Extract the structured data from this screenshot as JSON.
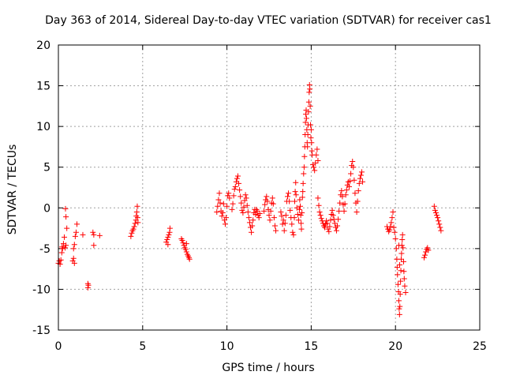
{
  "chart_data": {
    "type": "scatter",
    "title": "Day 363 of 2014, Sidereal Day-to-day VTEC variation (SDTVAR) for receiver cas1",
    "xlabel": "GPS time / hours",
    "ylabel": "SDTVAR / TECUs",
    "xlim": [
      0,
      25
    ],
    "ylim": [
      -15,
      20
    ],
    "xticks": [
      "0",
      "5",
      "10",
      "15",
      "20",
      "25"
    ],
    "yticks": [
      "-15",
      "-10",
      "-5",
      "0",
      "5",
      "10",
      "15",
      "20"
    ],
    "grid": true,
    "marker": "+",
    "colors": {
      "series": "#ff0000",
      "grid": "#a0a0a0",
      "axis": "#000000"
    },
    "series": [
      {
        "name": "cas1",
        "points": [
          [
            0.0,
            -6.8
          ],
          [
            0.05,
            -6.5
          ],
          [
            0.1,
            -6.9
          ],
          [
            0.15,
            -6.4
          ],
          [
            0.2,
            -5.5
          ],
          [
            0.22,
            -4.8
          ],
          [
            0.25,
            -5.0
          ],
          [
            0.3,
            -4.4
          ],
          [
            0.35,
            -3.6
          ],
          [
            0.4,
            -4.9
          ],
          [
            0.45,
            -4.6
          ],
          [
            0.5,
            -2.5
          ],
          [
            0.45,
            -1.1
          ],
          [
            0.42,
            -0.1
          ],
          [
            0.85,
            -6.5
          ],
          [
            0.9,
            -6.2
          ],
          [
            0.9,
            -5.0
          ],
          [
            0.95,
            -4.5
          ],
          [
            1.0,
            -3.5
          ],
          [
            1.05,
            -3.0
          ],
          [
            1.1,
            -2.0
          ],
          [
            0.95,
            -6.8
          ],
          [
            1.45,
            -3.3
          ],
          [
            1.75,
            -9.3
          ],
          [
            1.75,
            -9.8
          ],
          [
            1.78,
            -9.5
          ],
          [
            2.05,
            -3.0
          ],
          [
            2.1,
            -3.3
          ],
          [
            2.1,
            -4.6
          ],
          [
            2.45,
            -3.4
          ],
          [
            4.3,
            -3.5
          ],
          [
            4.35,
            -3.1
          ],
          [
            4.4,
            -2.8
          ],
          [
            4.45,
            -2.6
          ],
          [
            4.5,
            -2.3
          ],
          [
            4.55,
            -1.9
          ],
          [
            4.6,
            -1.5
          ],
          [
            4.62,
            -1.0
          ],
          [
            4.65,
            -0.5
          ],
          [
            4.68,
            0.2
          ],
          [
            4.7,
            -1.2
          ],
          [
            4.72,
            -1.8
          ],
          [
            6.4,
            -4.2
          ],
          [
            6.45,
            -3.9
          ],
          [
            6.5,
            -3.6
          ],
          [
            6.55,
            -3.3
          ],
          [
            6.6,
            -3.0
          ],
          [
            6.62,
            -2.5
          ],
          [
            6.5,
            -4.5
          ],
          [
            7.3,
            -3.8
          ],
          [
            7.35,
            -4.0
          ],
          [
            7.4,
            -4.3
          ],
          [
            7.45,
            -4.6
          ],
          [
            7.5,
            -4.9
          ],
          [
            7.55,
            -5.1
          ],
          [
            7.6,
            -5.4
          ],
          [
            7.65,
            -5.7
          ],
          [
            7.7,
            -5.9
          ],
          [
            7.75,
            -6.1
          ],
          [
            7.78,
            -6.3
          ],
          [
            7.6,
            -4.4
          ],
          [
            9.4,
            -0.5
          ],
          [
            9.45,
            0.2
          ],
          [
            9.5,
            1.0
          ],
          [
            9.55,
            1.8
          ],
          [
            9.6,
            0.6
          ],
          [
            9.65,
            -0.4
          ],
          [
            9.7,
            -1.0
          ],
          [
            9.75,
            -0.6
          ],
          [
            9.8,
            0.5
          ],
          [
            9.85,
            -1.5
          ],
          [
            9.9,
            -2.0
          ],
          [
            9.95,
            -1.2
          ],
          [
            10.0,
            0.2
          ],
          [
            10.05,
            1.5
          ],
          [
            10.1,
            1.8
          ],
          [
            10.15,
            1.2
          ],
          [
            10.3,
            -0.2
          ],
          [
            10.35,
            0.5
          ],
          [
            10.4,
            1.5
          ],
          [
            10.45,
            2.3
          ],
          [
            10.5,
            2.6
          ],
          [
            10.55,
            3.2
          ],
          [
            10.6,
            3.6
          ],
          [
            10.65,
            3.9
          ],
          [
            10.7,
            3.0
          ],
          [
            10.75,
            2.2
          ],
          [
            10.8,
            1.4
          ],
          [
            10.85,
            0.6
          ],
          [
            10.9,
            -0.3
          ],
          [
            10.95,
            -0.6
          ],
          [
            11.0,
            0.1
          ],
          [
            11.05,
            0.9
          ],
          [
            11.1,
            1.6
          ],
          [
            11.15,
            1.2
          ],
          [
            11.2,
            0.3
          ],
          [
            11.25,
            -0.5
          ],
          [
            11.3,
            -1.2
          ],
          [
            11.35,
            -1.8
          ],
          [
            11.4,
            -2.4
          ],
          [
            11.45,
            -3.0
          ],
          [
            11.5,
            -2.2
          ],
          [
            11.55,
            -1.5
          ],
          [
            11.6,
            -0.6
          ],
          [
            11.65,
            -0.2
          ],
          [
            11.7,
            -0.8
          ],
          [
            11.75,
            -0.2
          ],
          [
            11.8,
            -0.4
          ],
          [
            11.85,
            -0.9
          ],
          [
            11.9,
            -1.2
          ],
          [
            11.95,
            -0.7
          ],
          [
            12.2,
            -0.4
          ],
          [
            12.25,
            0.4
          ],
          [
            12.3,
            1.0
          ],
          [
            12.35,
            1.4
          ],
          [
            12.4,
            0.8
          ],
          [
            12.45,
            -0.2
          ],
          [
            12.5,
            -0.9
          ],
          [
            12.55,
            -1.5
          ],
          [
            12.6,
            -0.4
          ],
          [
            12.65,
            0.6
          ],
          [
            12.7,
            1.2
          ],
          [
            12.75,
            0.5
          ],
          [
            12.8,
            -1.2
          ],
          [
            12.85,
            -2.2
          ],
          [
            12.9,
            -2.8
          ],
          [
            13.2,
            -0.5
          ],
          [
            13.25,
            -1.0
          ],
          [
            13.3,
            -2.0
          ],
          [
            13.35,
            -1.5
          ],
          [
            13.4,
            -2.8
          ],
          [
            13.45,
            -1.9
          ],
          [
            13.5,
            -0.9
          ],
          [
            13.55,
            0.8
          ],
          [
            13.6,
            1.4
          ],
          [
            13.65,
            1.8
          ],
          [
            13.7,
            0.8
          ],
          [
            13.75,
            -0.3
          ],
          [
            13.8,
            -1.2
          ],
          [
            13.85,
            -2.0
          ],
          [
            13.9,
            -3.0
          ],
          [
            13.95,
            -3.3
          ],
          [
            14.0,
            -1.2
          ],
          [
            14.02,
            0.8
          ],
          [
            14.05,
            2.0
          ],
          [
            14.08,
            3.1
          ],
          [
            14.1,
            1.6
          ],
          [
            14.15,
            0.0
          ],
          [
            14.2,
            -0.8
          ],
          [
            14.25,
            -1.5
          ],
          [
            14.3,
            -0.2
          ],
          [
            14.32,
            1.0
          ],
          [
            14.35,
            0.2
          ],
          [
            14.38,
            -0.9
          ],
          [
            14.4,
            -1.9
          ],
          [
            14.42,
            -2.6
          ],
          [
            14.45,
            -0.6
          ],
          [
            14.48,
            1.3
          ],
          [
            14.5,
            2.0
          ],
          [
            14.52,
            3.0
          ],
          [
            14.55,
            4.2
          ],
          [
            14.58,
            5.0
          ],
          [
            14.6,
            6.3
          ],
          [
            14.62,
            7.5
          ],
          [
            14.64,
            9.0
          ],
          [
            14.66,
            10.5
          ],
          [
            14.68,
            11.5
          ],
          [
            14.7,
            12.0
          ],
          [
            14.72,
            11.0
          ],
          [
            14.74,
            9.6
          ],
          [
            14.76,
            8.0
          ],
          [
            14.78,
            7.5
          ],
          [
            14.8,
            9.0
          ],
          [
            14.82,
            10.2
          ],
          [
            14.84,
            11.8
          ],
          [
            14.86,
            13.0
          ],
          [
            14.88,
            14.2
          ],
          [
            14.9,
            15.1
          ],
          [
            14.92,
            14.6
          ],
          [
            14.94,
            12.5
          ],
          [
            14.96,
            10.2
          ],
          [
            14.98,
            8.6
          ],
          [
            15.0,
            9.6
          ],
          [
            15.02,
            8.0
          ],
          [
            15.04,
            7.0
          ],
          [
            15.06,
            6.5
          ],
          [
            15.1,
            5.3
          ],
          [
            15.15,
            5.0
          ],
          [
            15.2,
            4.6
          ],
          [
            15.25,
            5.5
          ],
          [
            15.3,
            6.5
          ],
          [
            15.35,
            7.2
          ],
          [
            15.4,
            5.8
          ],
          [
            15.4,
            1.2
          ],
          [
            15.45,
            0.3
          ],
          [
            15.5,
            -0.5
          ],
          [
            15.55,
            -0.9
          ],
          [
            15.6,
            -1.3
          ],
          [
            15.65,
            -1.6
          ],
          [
            15.7,
            -1.9
          ],
          [
            15.75,
            -2.2
          ],
          [
            15.8,
            -2.4
          ],
          [
            15.85,
            -2.0
          ],
          [
            15.9,
            -1.6
          ],
          [
            15.95,
            -1.9
          ],
          [
            16.0,
            -2.6
          ],
          [
            16.05,
            -2.9
          ],
          [
            16.1,
            -2.3
          ],
          [
            16.15,
            -1.5
          ],
          [
            16.2,
            -0.8
          ],
          [
            16.25,
            -0.3
          ],
          [
            16.3,
            -0.9
          ],
          [
            16.35,
            -1.4
          ],
          [
            16.4,
            -1.9
          ],
          [
            16.45,
            -2.4
          ],
          [
            16.5,
            -2.8
          ],
          [
            16.55,
            -2.2
          ],
          [
            16.6,
            -1.4
          ],
          [
            16.65,
            -0.4
          ],
          [
            16.7,
            0.6
          ],
          [
            16.75,
            1.6
          ],
          [
            16.8,
            2.1
          ],
          [
            16.85,
            1.4
          ],
          [
            16.9,
            0.4
          ],
          [
            16.95,
            -0.4
          ],
          [
            17.0,
            0.5
          ],
          [
            17.05,
            1.6
          ],
          [
            17.1,
            2.2
          ],
          [
            17.15,
            2.8
          ],
          [
            17.2,
            3.2
          ],
          [
            17.25,
            2.6
          ],
          [
            17.3,
            3.3
          ],
          [
            17.35,
            4.2
          ],
          [
            17.4,
            5.2
          ],
          [
            17.45,
            5.7
          ],
          [
            17.5,
            5.0
          ],
          [
            17.55,
            3.4
          ],
          [
            17.6,
            1.8
          ],
          [
            17.65,
            0.6
          ],
          [
            17.7,
            -0.5
          ],
          [
            17.75,
            0.8
          ],
          [
            17.8,
            2.1
          ],
          [
            17.85,
            3.0
          ],
          [
            17.9,
            3.6
          ],
          [
            17.95,
            4.0
          ],
          [
            18.0,
            4.4
          ],
          [
            18.05,
            3.2
          ],
          [
            19.5,
            -2.3
          ],
          [
            19.55,
            -2.6
          ],
          [
            19.6,
            -2.9
          ],
          [
            19.65,
            -2.7
          ],
          [
            19.7,
            -2.3
          ],
          [
            19.75,
            -1.8
          ],
          [
            19.8,
            -1.2
          ],
          [
            19.85,
            -0.5
          ],
          [
            19.9,
            -2.4
          ],
          [
            19.95,
            -3.0
          ],
          [
            20.0,
            -3.8
          ],
          [
            20.05,
            -5.0
          ],
          [
            20.08,
            -6.3
          ],
          [
            20.1,
            -7.3
          ],
          [
            20.12,
            -8.2
          ],
          [
            20.15,
            -9.4
          ],
          [
            20.18,
            -10.3
          ],
          [
            20.2,
            -11.4
          ],
          [
            20.22,
            -12.4
          ],
          [
            20.24,
            -13.1
          ],
          [
            20.26,
            -12.1
          ],
          [
            20.28,
            -10.6
          ],
          [
            20.3,
            -9.0
          ],
          [
            20.32,
            -7.7
          ],
          [
            20.34,
            -6.3
          ],
          [
            20.36,
            -5.6
          ],
          [
            20.38,
            -4.6
          ],
          [
            20.4,
            -3.9
          ],
          [
            20.42,
            -3.3
          ],
          [
            20.45,
            -4.9
          ],
          [
            20.48,
            -6.6
          ],
          [
            20.5,
            -7.8
          ],
          [
            20.52,
            -8.7
          ],
          [
            20.55,
            -9.6
          ],
          [
            20.6,
            -10.4
          ],
          [
            20.2,
            -4.6
          ],
          [
            20.25,
            -7.0
          ],
          [
            21.7,
            -6.1
          ],
          [
            21.75,
            -5.8
          ],
          [
            21.8,
            -5.4
          ],
          [
            21.85,
            -5.1
          ],
          [
            21.9,
            -4.9
          ],
          [
            21.95,
            -5.2
          ],
          [
            22.3,
            0.2
          ],
          [
            22.35,
            -0.3
          ],
          [
            22.4,
            -0.6
          ],
          [
            22.45,
            -0.9
          ],
          [
            22.5,
            -1.2
          ],
          [
            22.55,
            -1.6
          ],
          [
            22.6,
            -2.0
          ],
          [
            22.65,
            -2.4
          ],
          [
            22.7,
            -2.8
          ]
        ]
      }
    ]
  }
}
